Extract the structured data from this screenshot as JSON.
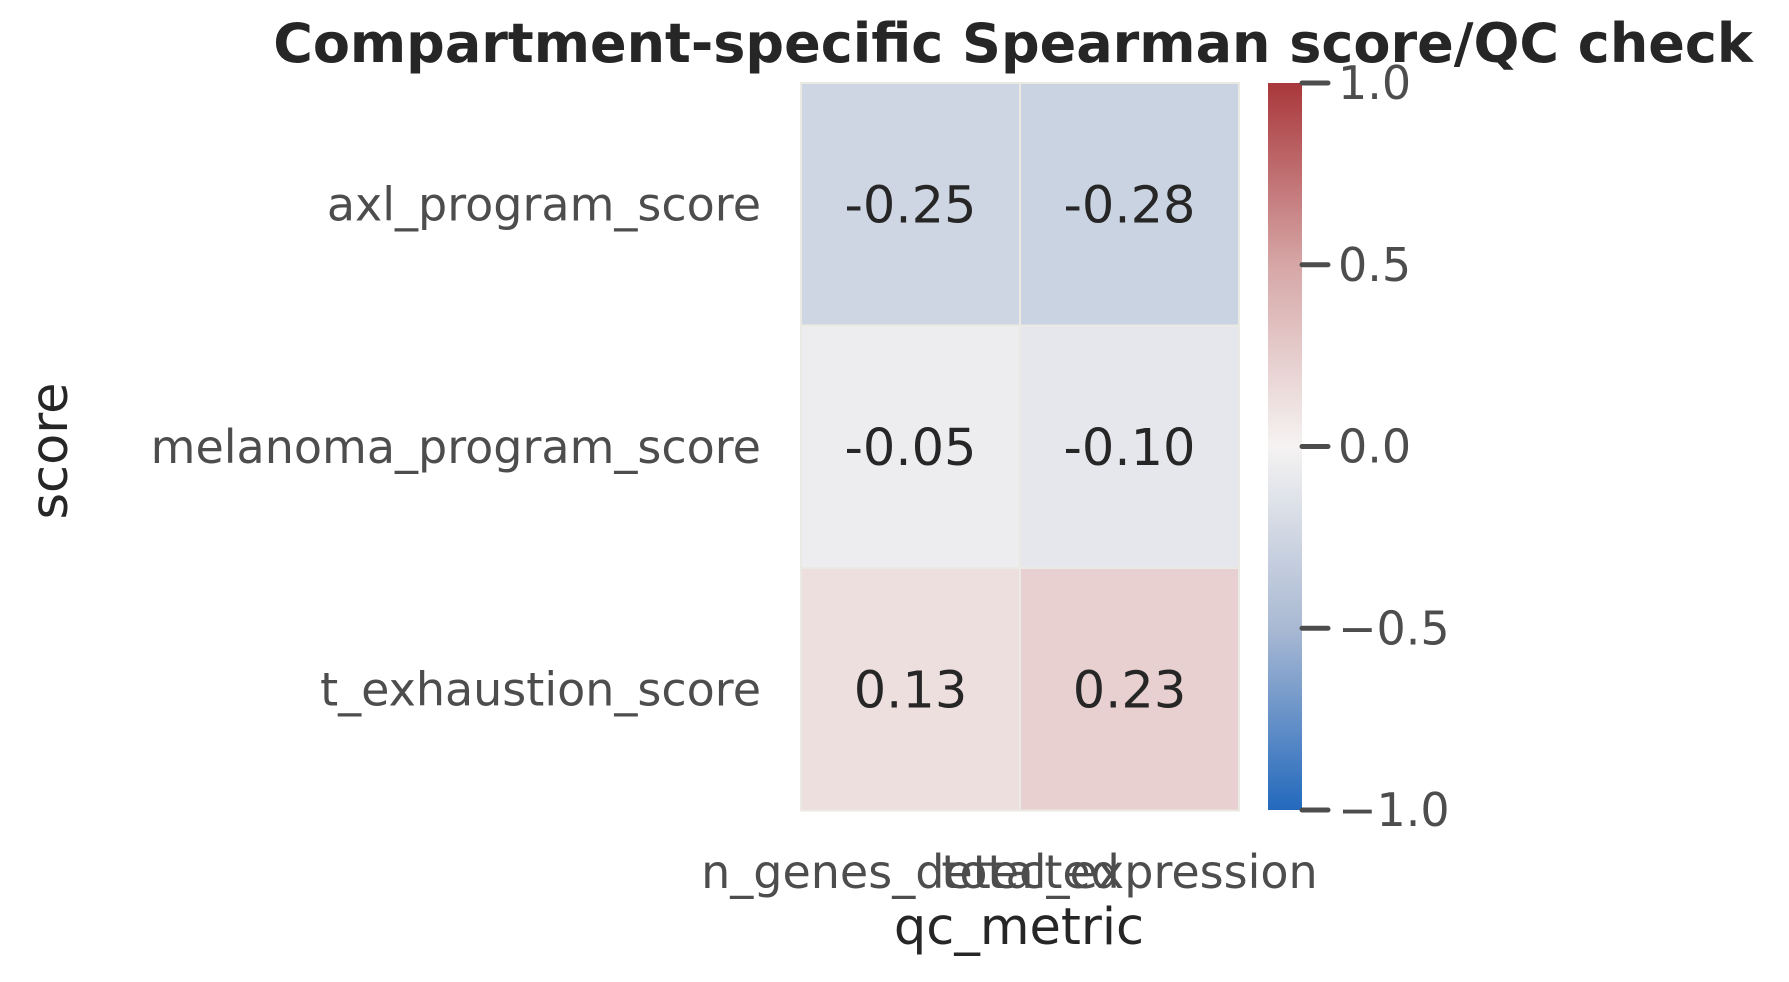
{
  "chart_data": {
    "type": "heatmap",
    "title": "Compartment-specific Spearman score/QC check",
    "xlabel": "qc_metric",
    "ylabel": "score",
    "x_categories": [
      "n_genes_detected",
      "total_expression"
    ],
    "y_categories": [
      "axl_program_score",
      "melanoma_program_score",
      "t_exhaustion_score"
    ],
    "values": [
      [
        -0.25,
        -0.28
      ],
      [
        -0.05,
        -0.1
      ],
      [
        0.13,
        0.23
      ]
    ],
    "value_labels": [
      [
        "-0.25",
        "-0.28"
      ],
      [
        "-0.05",
        "-0.10"
      ],
      [
        "0.13",
        "0.23"
      ]
    ],
    "colorbar": {
      "vmin": -1.0,
      "vmax": 1.0,
      "ticks": [
        1.0,
        0.5,
        0.0,
        -0.5,
        -1.0
      ],
      "tick_labels": [
        "1.0",
        "0.5",
        "0.0",
        "−0.5",
        "−1.0"
      ],
      "colormap": "vlag",
      "stops": [
        {
          "v": -1.0,
          "color": "#2369bd"
        },
        {
          "v": -0.5,
          "color": "#a9b9d3"
        },
        {
          "v": 0.0,
          "color": "#f5f3f2"
        },
        {
          "v": 0.5,
          "color": "#d6a6a6"
        },
        {
          "v": 1.0,
          "color": "#a9373b"
        }
      ]
    },
    "grid": false
  }
}
